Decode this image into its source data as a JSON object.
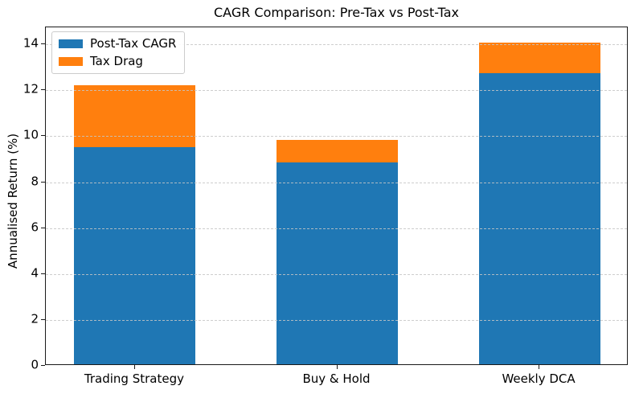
{
  "figure": {
    "title": "CAGR Comparison: Pre-Tax vs Post-Tax"
  },
  "chart_data": {
    "type": "bar",
    "stacked": true,
    "title": "CAGR Comparison: Pre-Tax vs Post-Tax",
    "categories": [
      "Trading Strategy",
      "Buy & Hold",
      "Weekly DCA"
    ],
    "series": [
      {
        "name": "Post-Tax CAGR",
        "color": "#1f77b4",
        "values": [
          9.45,
          8.78,
          12.67
        ]
      },
      {
        "name": "Tax Drag",
        "color": "#ff7f0e",
        "values": [
          2.7,
          1.0,
          1.35
        ]
      }
    ],
    "pre_tax_totals": [
      12.15,
      9.78,
      14.02
    ],
    "xlabel": "",
    "ylabel": "Annualised Return (%)",
    "ylim": [
      0,
      14.74
    ],
    "yticks": [
      0,
      2,
      4,
      6,
      8,
      10,
      12,
      14
    ],
    "grid": {
      "axis": "y",
      "style": "dashed",
      "color": "#c5c5c5",
      "on_top": true
    },
    "legend": {
      "position": "upper-left",
      "entries": [
        "Post-Tax CAGR",
        "Tax Drag"
      ]
    },
    "colors": {
      "background": "#ffffff",
      "spine": "#1a1a1a",
      "text": "#000000"
    }
  }
}
